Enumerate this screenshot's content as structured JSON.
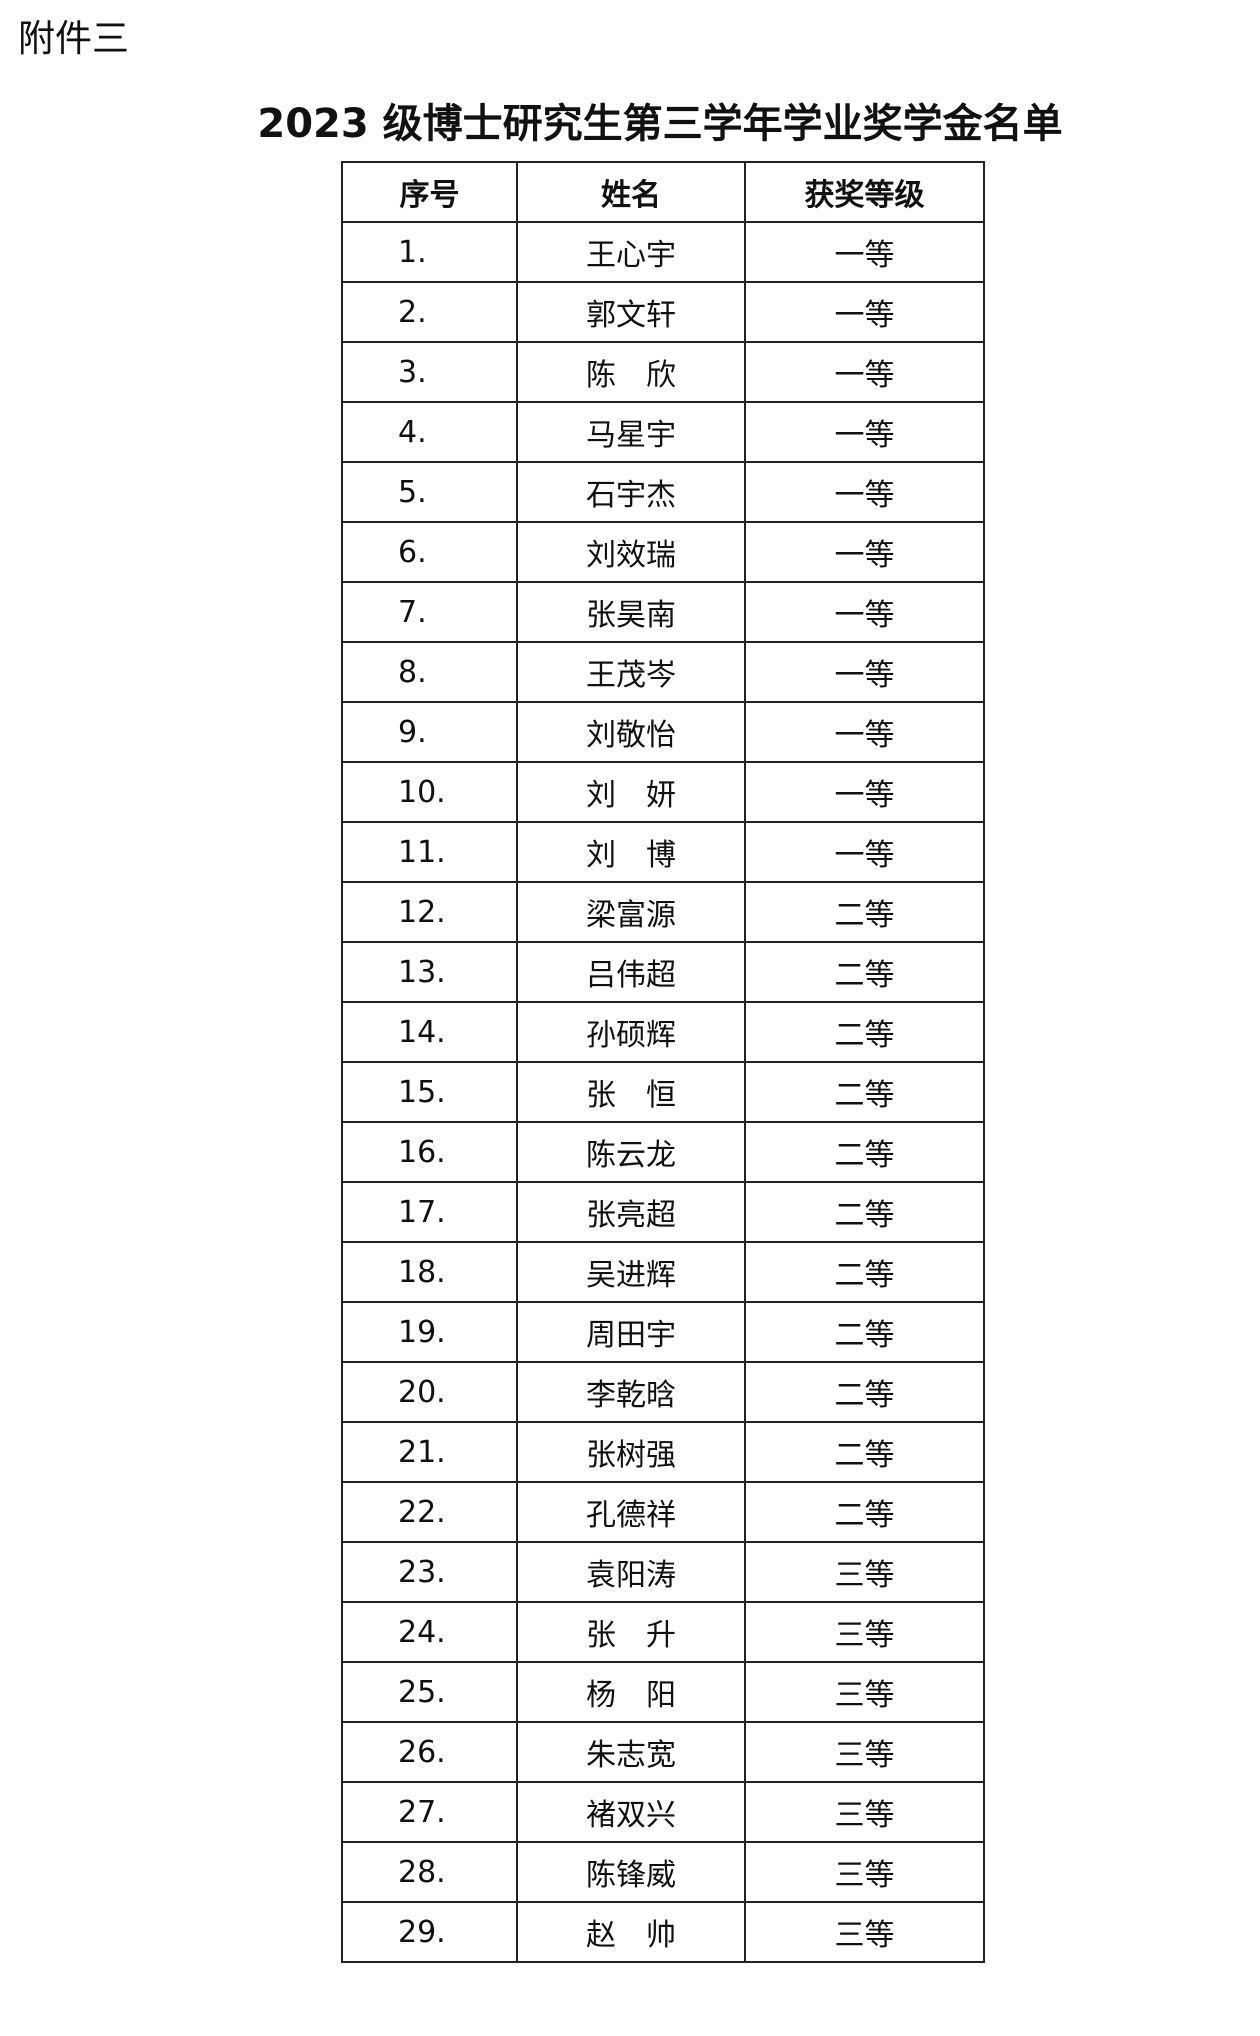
{
  "attachment_label": "附件三",
  "title": "2023 级博士研究生第三学年学业奖学金名单",
  "table": {
    "headers": [
      "序号",
      "姓名",
      "获奖等级"
    ],
    "rows": [
      {
        "no": "1.",
        "name": "王心宇",
        "level": "一等"
      },
      {
        "no": "2.",
        "name": "郭文轩",
        "level": "一等"
      },
      {
        "no": "3.",
        "name": "陈　欣",
        "level": "一等"
      },
      {
        "no": "4.",
        "name": "马星宇",
        "level": "一等"
      },
      {
        "no": "5.",
        "name": "石宇杰",
        "level": "一等"
      },
      {
        "no": "6.",
        "name": "刘效瑞",
        "level": "一等"
      },
      {
        "no": "7.",
        "name": "张昊南",
        "level": "一等"
      },
      {
        "no": "8.",
        "name": "王茂岑",
        "level": "一等"
      },
      {
        "no": "9.",
        "name": "刘敬怡",
        "level": "一等"
      },
      {
        "no": "10.",
        "name": "刘　妍",
        "level": "一等"
      },
      {
        "no": "11.",
        "name": "刘　博",
        "level": "一等"
      },
      {
        "no": "12.",
        "name": "梁富源",
        "level": "二等"
      },
      {
        "no": "13.",
        "name": "吕伟超",
        "level": "二等"
      },
      {
        "no": "14.",
        "name": "孙硕辉",
        "level": "二等"
      },
      {
        "no": "15.",
        "name": "张　恒",
        "level": "二等"
      },
      {
        "no": "16.",
        "name": "陈云龙",
        "level": "二等"
      },
      {
        "no": "17.",
        "name": "张亮超",
        "level": "二等"
      },
      {
        "no": "18.",
        "name": "吴进辉",
        "level": "二等"
      },
      {
        "no": "19.",
        "name": "周田宇",
        "level": "二等"
      },
      {
        "no": "20.",
        "name": "李乾晗",
        "level": "二等"
      },
      {
        "no": "21.",
        "name": "张树强",
        "level": "二等"
      },
      {
        "no": "22.",
        "name": "孔德祥",
        "level": "二等"
      },
      {
        "no": "23.",
        "name": "袁阳涛",
        "level": "三等"
      },
      {
        "no": "24.",
        "name": "张　升",
        "level": "三等"
      },
      {
        "no": "25.",
        "name": "杨　阳",
        "level": "三等"
      },
      {
        "no": "26.",
        "name": "朱志宽",
        "level": "三等"
      },
      {
        "no": "27.",
        "name": "褚双兴",
        "level": "三等"
      },
      {
        "no": "28.",
        "name": "陈锋威",
        "level": "三等"
      },
      {
        "no": "29.",
        "name": "赵　帅",
        "level": "三等"
      }
    ]
  }
}
